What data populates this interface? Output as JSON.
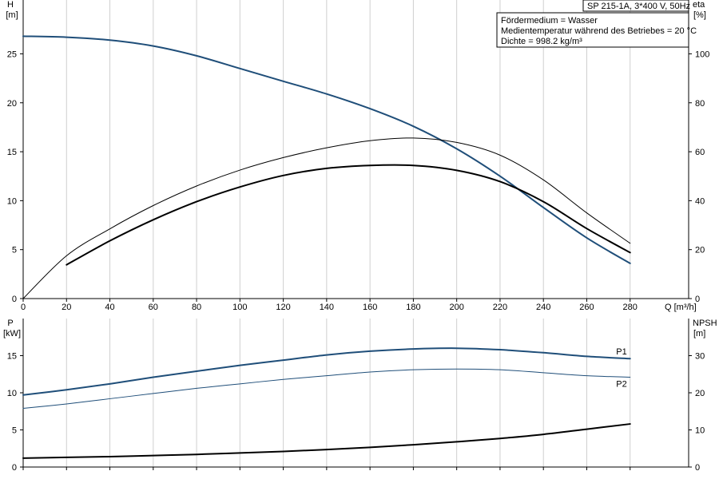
{
  "title_box": {
    "text": "SP 215-1A, 3*400 V, 50Hz"
  },
  "info_lines": [
    "Fördermedium = Wasser",
    "Medientemperatur während des Betriebes = 20 °C",
    "Dichte = 998.2 kg/m³"
  ],
  "chart_data": [
    {
      "type": "line",
      "panel": "top",
      "xlabel": "Q [m³/h]",
      "ylabel": "H",
      "ylabel_unit": "[m]",
      "y2label": "eta",
      "y2label_unit": "[%]",
      "xlim": [
        0,
        307
      ],
      "ylim": [
        0,
        30.5
      ],
      "y2lim": [
        0,
        122
      ],
      "xticks": [
        0,
        20,
        40,
        60,
        80,
        100,
        120,
        140,
        160,
        180,
        200,
        220,
        240,
        260,
        280
      ],
      "yticks": [
        0,
        5,
        10,
        15,
        20,
        25
      ],
      "y2ticks": [
        0,
        20,
        40,
        60,
        80,
        100
      ],
      "grid": true,
      "series": [
        {
          "axis": "left",
          "color": "#1f4e79",
          "width": 2,
          "points": [
            [
              0,
              26.8
            ],
            [
              20,
              26.7
            ],
            [
              40,
              26.4
            ],
            [
              60,
              25.8
            ],
            [
              80,
              24.8
            ],
            [
              100,
              23.5
            ],
            [
              120,
              22.2
            ],
            [
              140,
              20.9
            ],
            [
              160,
              19.4
            ],
            [
              180,
              17.6
            ],
            [
              200,
              15.3
            ],
            [
              220,
              12.5
            ],
            [
              240,
              9.3
            ],
            [
              260,
              6.2
            ],
            [
              280,
              3.6
            ]
          ]
        },
        {
          "axis": "right",
          "color": "#000000",
          "width": 1,
          "points": [
            [
              0,
              0
            ],
            [
              20,
              17.5
            ],
            [
              40,
              28.5
            ],
            [
              60,
              38
            ],
            [
              80,
              46
            ],
            [
              100,
              52.5
            ],
            [
              120,
              57.6
            ],
            [
              140,
              61.6
            ],
            [
              160,
              64.5
            ],
            [
              180,
              65.6
            ],
            [
              200,
              63.8
            ],
            [
              220,
              58.6
            ],
            [
              240,
              48.5
            ],
            [
              260,
              35
            ],
            [
              280,
              22.6
            ]
          ]
        },
        {
          "axis": "right",
          "color": "#000000",
          "width": 2,
          "points": [
            [
              20,
              13.8
            ],
            [
              40,
              23.6
            ],
            [
              60,
              32.2
            ],
            [
              80,
              39.6
            ],
            [
              100,
              45.6
            ],
            [
              120,
              50.3
            ],
            [
              140,
              53.2
            ],
            [
              160,
              54.4
            ],
            [
              180,
              54.4
            ],
            [
              200,
              52.4
            ],
            [
              220,
              47.8
            ],
            [
              240,
              39.6
            ],
            [
              260,
              28.6
            ],
            [
              280,
              18.8
            ]
          ]
        }
      ]
    },
    {
      "type": "line",
      "panel": "bottom",
      "xlabel": "",
      "ylabel": "P",
      "ylabel_unit": "[kW]",
      "y2label": "NPSH",
      "y2label_unit": "[m]",
      "xlim": [
        0,
        307
      ],
      "ylim": [
        0,
        20
      ],
      "y2lim": [
        0,
        40
      ],
      "xticks": [
        0,
        20,
        40,
        60,
        80,
        100,
        120,
        140,
        160,
        180,
        200,
        220,
        240,
        260,
        280
      ],
      "yticks": [
        0,
        5,
        10,
        15
      ],
      "y2ticks": [
        0,
        10,
        20,
        30
      ],
      "grid": true,
      "series": [
        {
          "name": "P1",
          "axis": "left",
          "color": "#1f4e79",
          "width": 2,
          "points": [
            [
              0,
              9.7
            ],
            [
              20,
              10.4
            ],
            [
              40,
              11.2
            ],
            [
              60,
              12.1
            ],
            [
              80,
              12.9
            ],
            [
              100,
              13.7
            ],
            [
              120,
              14.4
            ],
            [
              140,
              15.1
            ],
            [
              160,
              15.6
            ],
            [
              180,
              15.9
            ],
            [
              200,
              16.0
            ],
            [
              220,
              15.8
            ],
            [
              240,
              15.4
            ],
            [
              260,
              14.9
            ],
            [
              280,
              14.6
            ]
          ]
        },
        {
          "name": "P2",
          "axis": "left",
          "color": "#1f4e79",
          "width": 1,
          "points": [
            [
              0,
              7.9
            ],
            [
              20,
              8.5
            ],
            [
              40,
              9.2
            ],
            [
              60,
              9.9
            ],
            [
              80,
              10.6
            ],
            [
              100,
              11.2
            ],
            [
              120,
              11.8
            ],
            [
              140,
              12.3
            ],
            [
              160,
              12.8
            ],
            [
              180,
              13.1
            ],
            [
              200,
              13.2
            ],
            [
              220,
              13.1
            ],
            [
              240,
              12.7
            ],
            [
              260,
              12.3
            ],
            [
              280,
              12.1
            ]
          ]
        },
        {
          "axis": "right",
          "color": "#000000",
          "width": 2,
          "points": [
            [
              0,
              2.4
            ],
            [
              20,
              2.6
            ],
            [
              40,
              2.8
            ],
            [
              60,
              3.1
            ],
            [
              80,
              3.4
            ],
            [
              100,
              3.8
            ],
            [
              120,
              4.2
            ],
            [
              140,
              4.7
            ],
            [
              160,
              5.3
            ],
            [
              180,
              6.0
            ],
            [
              200,
              6.8
            ],
            [
              220,
              7.7
            ],
            [
              240,
              8.8
            ],
            [
              260,
              10.2
            ],
            [
              280,
              11.6
            ]
          ]
        }
      ]
    }
  ]
}
